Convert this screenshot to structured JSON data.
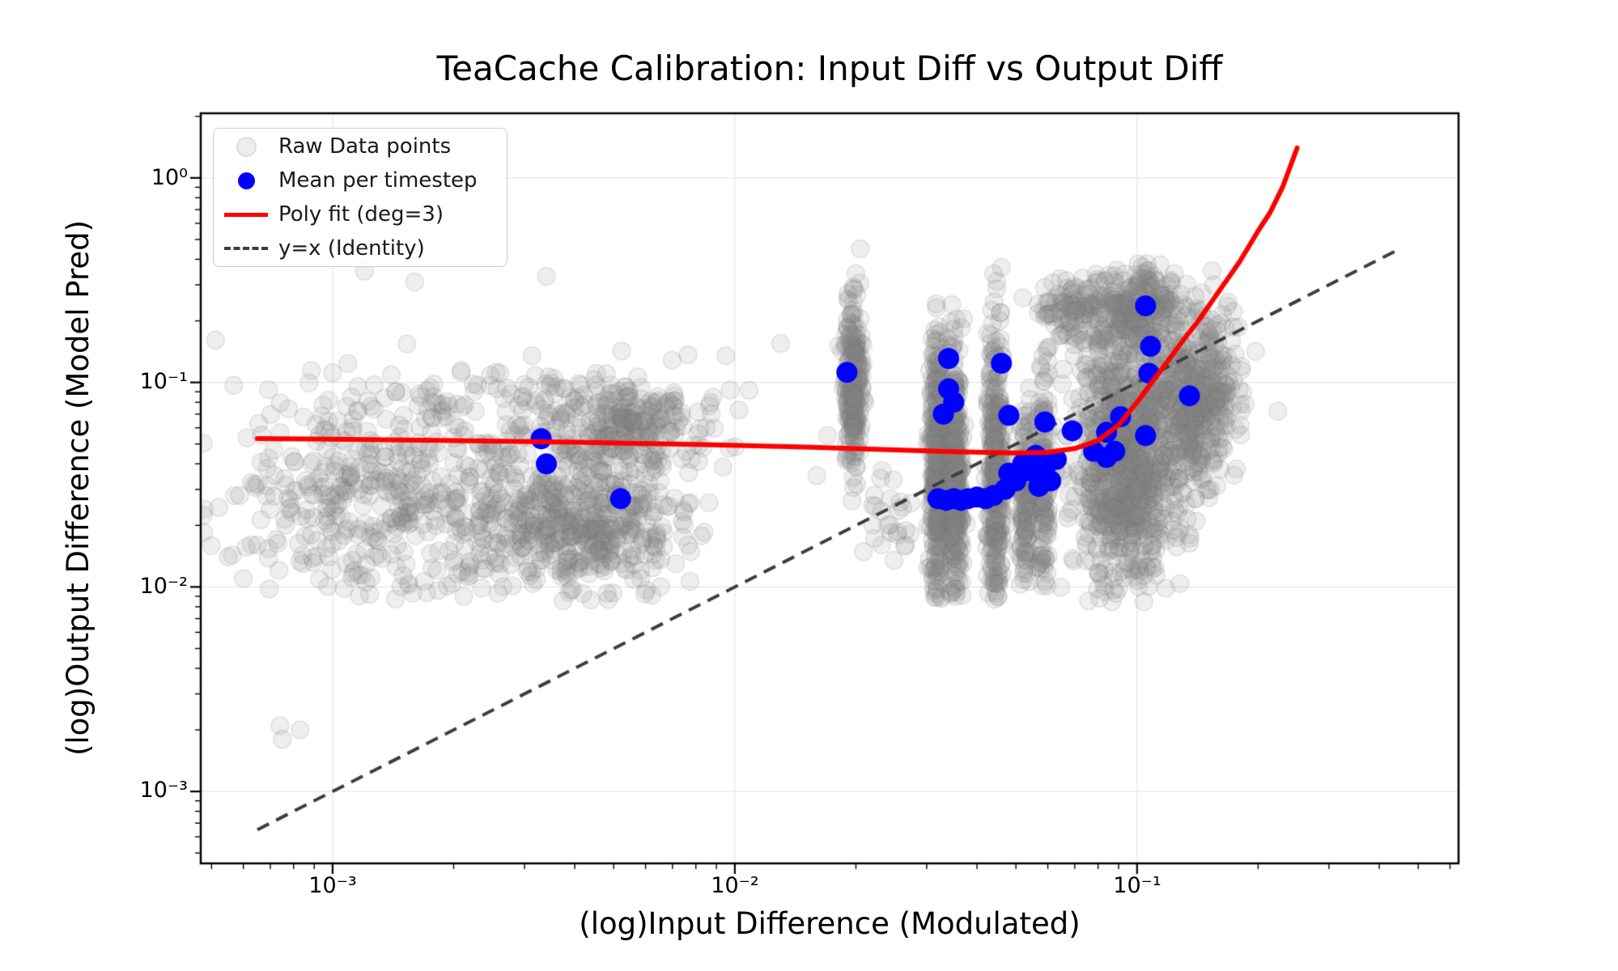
{
  "chart_data": {
    "type": "scatter",
    "title": "TeaCache Calibration: Input Diff vs Output Diff",
    "xlabel": "(log)Input Difference (Modulated)",
    "ylabel": "(log)Output Difference (Model Pred)",
    "x_scale": "log",
    "y_scale": "log",
    "xlim": [
      0.00047,
      0.63
    ],
    "ylim": [
      0.000445,
      2.07
    ],
    "grid": true,
    "grid_color": "#e7e7e7",
    "background": "#ffffff",
    "x_ticks": [
      {
        "value": 0.001,
        "label": "10⁻³"
      },
      {
        "value": 0.01,
        "label": "10⁻²"
      },
      {
        "value": 0.1,
        "label": "10⁻¹"
      }
    ],
    "y_ticks": [
      {
        "value": 1,
        "label": "10⁰"
      },
      {
        "value": 0.1,
        "label": "10⁻¹"
      },
      {
        "value": 0.01,
        "label": "10⁻²"
      },
      {
        "value": 0.001,
        "label": "10⁻³"
      }
    ],
    "legend": {
      "position": "upper left",
      "entries": [
        {
          "label": "Raw Data points",
          "type": "marker",
          "color": "#ededed",
          "edge": "#dddddd"
        },
        {
          "label": "Mean per timestep",
          "type": "marker",
          "color": "#0000ff",
          "edge": "#0000ff"
        },
        {
          "label": "Poly fit (deg=3)",
          "type": "line",
          "color": "#ff0000",
          "edge": "#ff0000"
        },
        {
          "label": "y=x (Identity)",
          "type": "dashed",
          "color": "#3d3d3d",
          "edge": "#3d3d3d"
        }
      ]
    },
    "series": {
      "raw": {
        "name": "Raw Data points",
        "color": "#878787",
        "alpha": 0.14,
        "edge_alpha": 0.16,
        "marker_radius": 11,
        "clusters": [
          {
            "n": 300,
            "cx": -2.95,
            "cy": -1.57,
            "sx": 0.16,
            "sy": 0.27,
            "clip": [
              -2.06,
              -0.78
            ]
          },
          {
            "n": 380,
            "cx": -2.52,
            "cy": -1.6,
            "sx": 0.2,
            "sy": 0.22,
            "clip": [
              -2.07,
              -0.75
            ]
          },
          {
            "n": 300,
            "cx": -2.37,
            "cy": -1.72,
            "sx": 0.1,
            "sy": 0.15,
            "clip": [
              -2.07,
              -0.8
            ]
          },
          {
            "n": 260,
            "cx": -2.28,
            "cy": -1.22,
            "sx": 0.1,
            "sy": 0.13,
            "clip": [
              -1.75,
              -0.8
            ]
          },
          {
            "n": 90,
            "cx": -2.62,
            "cy": -1.06,
            "sx": 0.24,
            "sy": 0.09,
            "clip": [
              -1.3,
              -0.72
            ]
          },
          {
            "n": 240,
            "cx": -1.705,
            "cy": -1.02,
            "sx": 0.011,
            "sy": 0.22,
            "clip": [
              -1.56,
              -0.49
            ]
          },
          {
            "n": 25,
            "cx": -1.62,
            "cy": -1.7,
            "sx": 0.035,
            "sy": 0.13,
            "clip": [
              -1.9,
              -1.4
            ]
          },
          {
            "n": 380,
            "cx": -1.497,
            "cy": -1.45,
            "sx": 0.009,
            "sy": 0.36,
            "clip": [
              -2.07,
              -0.52
            ]
          },
          {
            "n": 330,
            "cx": -1.452,
            "cy": -1.42,
            "sx": 0.009,
            "sy": 0.34,
            "clip": [
              -2.07,
              -0.54
            ]
          },
          {
            "n": 330,
            "cx": -1.352,
            "cy": -1.43,
            "sx": 0.01,
            "sy": 0.36,
            "clip": [
              -2.07,
              -0.5
            ]
          },
          {
            "n": 150,
            "cx": -1.278,
            "cy": -1.55,
            "sx": 0.008,
            "sy": 0.22,
            "clip": [
              -2.0,
              -0.95
            ]
          },
          {
            "n": 150,
            "cx": -1.232,
            "cy": -1.47,
            "sx": 0.008,
            "sy": 0.26,
            "clip": [
              -2.0,
              -0.8
            ]
          },
          {
            "n": 950,
            "cx": -1.03,
            "cy": -1.38,
            "sx": 0.06,
            "sy": 0.33,
            "clip": [
              -2.08,
              -0.56
            ]
          },
          {
            "n": 420,
            "cx": -0.875,
            "cy": -1.12,
            "sx": 0.05,
            "sy": 0.22,
            "clip": [
              -1.8,
              -0.56
            ]
          },
          {
            "n": 230,
            "cx": -0.99,
            "cy": -0.63,
            "sx": 0.055,
            "sy": 0.1,
            "clip": [
              -0.85,
              -0.4
            ]
          },
          {
            "n": 120,
            "cx": -1.15,
            "cy": -0.64,
            "sx": 0.045,
            "sy": 0.09,
            "clip": [
              -0.85,
              -0.45
            ]
          },
          {
            "n": 100,
            "cx": -0.8,
            "cy": -0.98,
            "sx": 0.035,
            "sy": 0.17,
            "clip": [
              -1.65,
              -0.62
            ]
          }
        ],
        "outliers": [
          [
            0.00074,
            0.0021
          ],
          [
            0.00083,
            0.002
          ],
          [
            0.00075,
            0.0018
          ],
          [
            0.0012,
            0.35
          ],
          [
            0.0016,
            0.31
          ],
          [
            0.0034,
            0.33
          ],
          [
            0.0205,
            0.45
          ],
          [
            0.02,
            0.34
          ],
          [
            0.046,
            0.365
          ],
          [
            0.044,
            0.34
          ],
          [
            0.013,
            0.155
          ],
          [
            0.0095,
            0.135
          ],
          [
            0.155,
            0.3
          ],
          [
            0.017,
            0.055
          ],
          [
            0.016,
            0.035
          ],
          [
            0.022,
            0.025
          ],
          [
            0.024,
            0.02
          ]
        ]
      },
      "means": {
        "name": "Mean per timestep",
        "color": "#0000ff",
        "marker_radius": 13,
        "points": [
          [
            0.0033,
            0.053
          ],
          [
            0.0034,
            0.04
          ],
          [
            0.0052,
            0.027
          ],
          [
            0.019,
            0.112
          ],
          [
            0.032,
            0.027
          ],
          [
            0.0335,
            0.0265
          ],
          [
            0.035,
            0.027
          ],
          [
            0.0365,
            0.0265
          ],
          [
            0.038,
            0.027
          ],
          [
            0.04,
            0.0275
          ],
          [
            0.042,
            0.027
          ],
          [
            0.044,
            0.028
          ],
          [
            0.047,
            0.03
          ],
          [
            0.048,
            0.036
          ],
          [
            0.05,
            0.033
          ],
          [
            0.052,
            0.04
          ],
          [
            0.054,
            0.037
          ],
          [
            0.056,
            0.044
          ],
          [
            0.057,
            0.031
          ],
          [
            0.059,
            0.038
          ],
          [
            0.061,
            0.033
          ],
          [
            0.063,
            0.042
          ],
          [
            0.034,
            0.131
          ],
          [
            0.046,
            0.124
          ],
          [
            0.034,
            0.093
          ],
          [
            0.035,
            0.08
          ],
          [
            0.033,
            0.07
          ],
          [
            0.048,
            0.069
          ],
          [
            0.059,
            0.064
          ],
          [
            0.069,
            0.058
          ],
          [
            0.078,
            0.046
          ],
          [
            0.084,
            0.057
          ],
          [
            0.084,
            0.043
          ],
          [
            0.088,
            0.046
          ],
          [
            0.091,
            0.068
          ],
          [
            0.105,
            0.237
          ],
          [
            0.108,
            0.15
          ],
          [
            0.107,
            0.111
          ],
          [
            0.105,
            0.055
          ],
          [
            0.135,
            0.086
          ]
        ]
      },
      "poly_fit": {
        "name": "Poly fit (deg=3)",
        "color": "#ff0000",
        "line_width": 6,
        "degree": 3,
        "points": [
          [
            0.00065,
            0.0531
          ],
          [
            0.001,
            0.0528
          ],
          [
            0.002,
            0.052
          ],
          [
            0.004,
            0.051
          ],
          [
            0.008,
            0.0498
          ],
          [
            0.015,
            0.0483
          ],
          [
            0.025,
            0.0468
          ],
          [
            0.035,
            0.0458
          ],
          [
            0.05,
            0.0452
          ],
          [
            0.06,
            0.0455
          ],
          [
            0.07,
            0.0475
          ],
          [
            0.08,
            0.052
          ],
          [
            0.09,
            0.062
          ],
          [
            0.1,
            0.08
          ],
          [
            0.11,
            0.103
          ],
          [
            0.117,
            0.121
          ],
          [
            0.13,
            0.16
          ],
          [
            0.142,
            0.2
          ],
          [
            0.16,
            0.28
          ],
          [
            0.18,
            0.39
          ],
          [
            0.2,
            0.55
          ],
          [
            0.214,
            0.675
          ],
          [
            0.23,
            0.9
          ],
          [
            0.25,
            1.4
          ]
        ]
      },
      "identity": {
        "name": "y=x (Identity)",
        "color": "#3d3d3d",
        "line_width": 4,
        "dash": [
          16,
          10
        ],
        "points": [
          [
            0.00065,
            0.00065
          ],
          [
            0.45,
            0.45
          ]
        ]
      }
    }
  }
}
